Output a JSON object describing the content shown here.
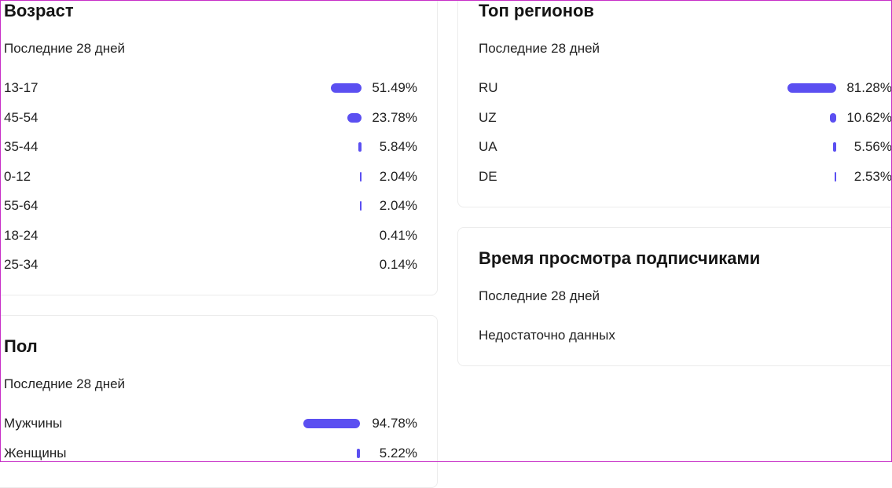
{
  "age": {
    "title": "Возраст",
    "subtitle": "Последние 28 дней",
    "rows": [
      {
        "label": "13-17",
        "value": "51.49%",
        "pct": 51.49
      },
      {
        "label": "45-54",
        "value": "23.78%",
        "pct": 23.78
      },
      {
        "label": "35-44",
        "value": "5.84%",
        "pct": 5.84
      },
      {
        "label": "0-12",
        "value": "2.04%",
        "pct": 2.04
      },
      {
        "label": "55-64",
        "value": "2.04%",
        "pct": 2.04
      },
      {
        "label": "18-24",
        "value": "0.41%",
        "pct": 0.41
      },
      {
        "label": "25-34",
        "value": "0.14%",
        "pct": 0.14
      }
    ]
  },
  "gender": {
    "title": "Пол",
    "subtitle": "Последние 28 дней",
    "rows": [
      {
        "label": "Мужчины",
        "value": "94.78%",
        "pct": 94.78
      },
      {
        "label": "Женщины",
        "value": "5.22%",
        "pct": 5.22
      }
    ]
  },
  "regions": {
    "title": "Топ регионов",
    "subtitle": "Последние 28 дней",
    "rows": [
      {
        "label": "RU",
        "value": "81.28%",
        "pct": 81.28
      },
      {
        "label": "UZ",
        "value": "10.62%",
        "pct": 10.62
      },
      {
        "label": "UA",
        "value": "5.56%",
        "pct": 5.56
      },
      {
        "label": "DE",
        "value": "2.53%",
        "pct": 2.53
      }
    ]
  },
  "subscriber_watch_time": {
    "title": "Время просмотра подписчиками",
    "subtitle": "Последние 28 дней",
    "message": "Недостаточно данных"
  },
  "colors": {
    "bar": "#5b4ff1",
    "frame": "#c72fc7"
  }
}
